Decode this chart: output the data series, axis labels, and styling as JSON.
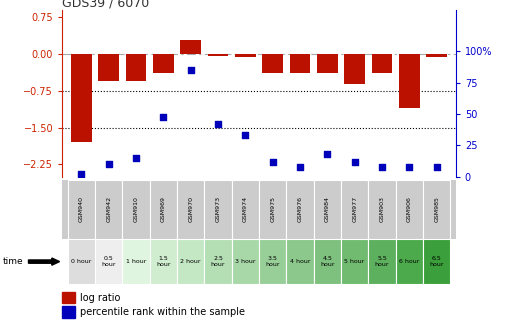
{
  "title": "GDS39 / 6070",
  "samples": [
    "GSM940",
    "GSM942",
    "GSM910",
    "GSM969",
    "GSM970",
    "GSM973",
    "GSM974",
    "GSM975",
    "GSM976",
    "GSM984",
    "GSM977",
    "GSM903",
    "GSM906",
    "GSM985"
  ],
  "time_labels": [
    "0 hour",
    "0.5\nhour",
    "1 hour",
    "1.5\nhour",
    "2 hour",
    "2.5\nhour",
    "3 hour",
    "3.5\nhour",
    "4 hour",
    "4.5\nhour",
    "5 hour",
    "5.5\nhour",
    "6 hour",
    "6.5\nhour"
  ],
  "log_ratio": [
    -1.8,
    -0.55,
    -0.55,
    -0.38,
    0.28,
    -0.04,
    -0.07,
    -0.38,
    -0.38,
    -0.38,
    -0.62,
    -0.38,
    -1.1,
    -0.06
  ],
  "percentile": [
    2,
    10,
    15,
    48,
    85,
    42,
    33,
    12,
    8,
    18,
    12,
    8,
    8,
    8
  ],
  "ylim_left": [
    -2.5,
    0.9
  ],
  "ylim_right": [
    0,
    133.3
  ],
  "yticks_left": [
    0.75,
    0.0,
    -0.75,
    -1.5,
    -2.25
  ],
  "yticks_right": [
    100,
    75,
    50,
    25,
    0
  ],
  "hlines_dotted": [
    -0.75,
    -1.5
  ],
  "hline_dashdot": 0.0,
  "bar_color": "#BB1100",
  "dot_color": "#0000BB",
  "title_color": "#333333",
  "left_axis_color": "#CC2200",
  "right_axis_color": "#0000CC",
  "time_bg_colors": [
    "#DDDDDD",
    "#EEEEEE",
    "#E8F8E8",
    "#EEFAEE",
    "#DDEEDD",
    "#E8F4E8",
    "#CCEACC",
    "#D8F0D8",
    "#BCDABC",
    "#CAEACA",
    "#AACCAA",
    "#BCDABC",
    "#88BB88",
    "#99CC99"
  ],
  "sample_bg": "#CCCCCC",
  "fig_width": 5.18,
  "fig_height": 3.27,
  "dpi": 100
}
